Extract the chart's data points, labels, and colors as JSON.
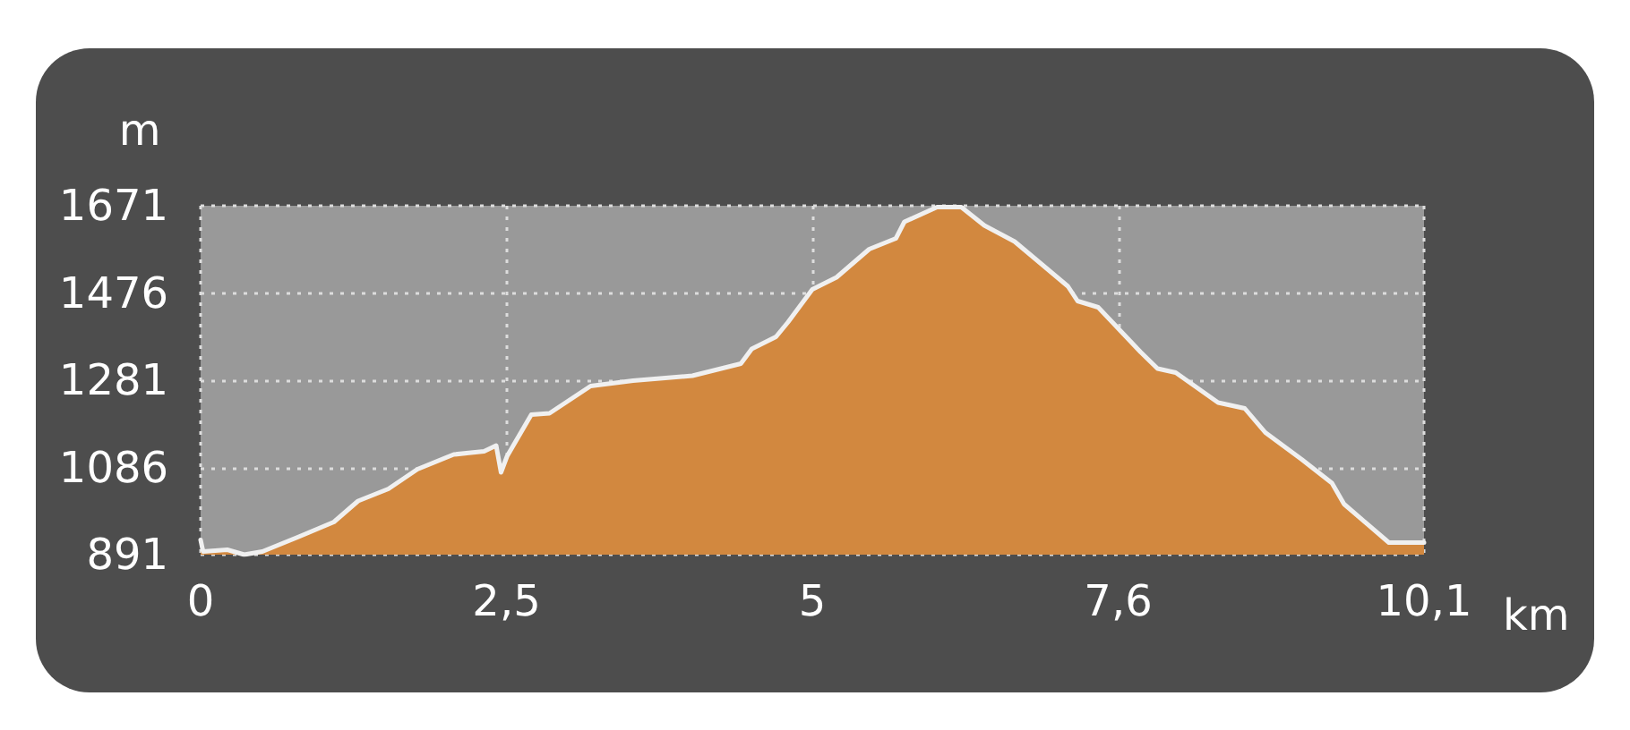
{
  "chart_data": {
    "type": "area",
    "xlabel": "km",
    "ylabel": "m",
    "x": [
      0,
      0.02,
      0.22,
      0.36,
      0.51,
      0.81,
      1.1,
      1.3,
      1.55,
      1.79,
      2.09,
      2.34,
      2.44,
      2.48,
      2.53,
      2.73,
      2.88,
      3.22,
      3.57,
      4.06,
      4.46,
      4.55,
      4.75,
      4.85,
      5.05,
      5.25,
      5.52,
      5.74,
      5.81,
      6.08,
      6.28,
      6.47,
      6.72,
      7.16,
      7.24,
      7.41,
      7.76,
      7.9,
      8.05,
      8.4,
      8.62,
      8.79,
      9.09,
      9.34,
      9.44,
      9.81,
      10.1
    ],
    "series": [
      {
        "color": "#d2883f",
        "values": [
          924,
          898,
          902,
          891,
          898,
          931,
          964,
          1011,
          1038,
          1082,
          1115,
          1122,
          1135,
          1075,
          1111,
          1204,
          1207,
          1268,
          1280,
          1291,
          1318,
          1351,
          1378,
          1411,
          1484,
          1511,
          1574,
          1598,
          1635,
          1668,
          1668,
          1627,
          1591,
          1491,
          1458,
          1444,
          1344,
          1307,
          1298,
          1231,
          1218,
          1164,
          1104,
          1051,
          1004,
          918,
          918
        ]
      }
    ],
    "xlim": [
      0,
      10.1
    ],
    "xticks": [
      0,
      {
        "value": 2.525,
        "label": "2,5"
      },
      {
        "value": 5.05,
        "label": "5"
      },
      {
        "value": 7.575,
        "label": "7,6"
      },
      {
        "value": 10.1,
        "label": "10,1"
      }
    ],
    "ylim": [
      891,
      1671
    ],
    "yticks": [
      891,
      1086,
      1281,
      1476,
      1671
    ],
    "grid": true,
    "legend": false,
    "marker": "none",
    "line_style": "solid"
  }
}
